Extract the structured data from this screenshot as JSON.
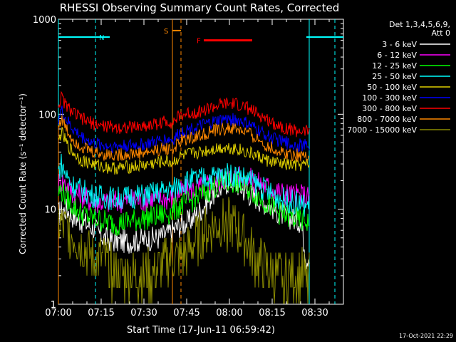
{
  "chart_data": {
    "type": "line",
    "title": "RHESSI Observing Summary Count Rates, Corrected",
    "xlabel": "Start Time (17-Jun-11 06:59:42)",
    "ylabel": "Corrected Count Rate (s⁻¹ detector⁻¹)",
    "yscale": "log",
    "ylim": [
      1,
      1000
    ],
    "xlim_minutes": [
      0,
      100
    ],
    "x_tick_labels": [
      "07:00",
      "07:15",
      "07:30",
      "07:45",
      "08:00",
      "08:15",
      "08:30"
    ],
    "x_tick_minutes": [
      0,
      15,
      30,
      45,
      60,
      75,
      90
    ],
    "y_tick_labels": [
      "1",
      "10",
      "100",
      "1000"
    ],
    "y_tick_values": [
      1,
      10,
      100,
      1000
    ],
    "legend_placement": "top-right outside",
    "legend_header": [
      "Det 1,3,4,5,6,9,",
      "Att 0"
    ],
    "series": [
      {
        "name": "3 - 6 keV",
        "color": "#ffffff",
        "x": [
          0,
          1,
          3,
          5,
          8,
          12,
          16,
          20,
          25,
          30,
          35,
          38,
          40,
          43,
          46,
          50,
          54,
          58,
          60,
          63,
          66,
          70,
          74,
          78,
          82,
          85,
          87,
          88
        ],
        "values": [
          9,
          9.5,
          10,
          8.5,
          7.5,
          6.5,
          5,
          4.6,
          4.6,
          4.8,
          5,
          5.5,
          6,
          6.8,
          7.5,
          10,
          14,
          18,
          20,
          18,
          15,
          13,
          11,
          9,
          8,
          7.5,
          3,
          3.5
        ]
      },
      {
        "name": "6 - 12 keV",
        "color": "#ff00ff",
        "x": [
          0,
          1,
          3,
          5,
          8,
          12,
          16,
          20,
          25,
          30,
          35,
          38,
          40,
          43,
          46,
          50,
          54,
          58,
          62,
          66,
          70,
          74,
          78,
          82,
          86,
          88
        ],
        "values": [
          19,
          20,
          18,
          15,
          14,
          12,
          12,
          12,
          12.5,
          12.5,
          13,
          13,
          13,
          15,
          16,
          17,
          19,
          21,
          22,
          21,
          19,
          17,
          15,
          14,
          14,
          13
        ]
      },
      {
        "name": "12 - 25 keV",
        "color": "#00ff00",
        "x": [
          0,
          1,
          3,
          5,
          8,
          12,
          16,
          20,
          25,
          30,
          35,
          38,
          40,
          43,
          46,
          50,
          54,
          58,
          62,
          66,
          70,
          74,
          78,
          82,
          86,
          88
        ],
        "values": [
          15,
          16,
          13,
          11,
          9,
          8,
          7.5,
          7,
          7.5,
          8,
          8.5,
          9,
          9.5,
          11,
          12,
          14,
          17,
          19,
          19.5,
          17,
          14,
          11,
          9,
          8,
          7.5,
          7.5
        ]
      },
      {
        "name": "25 - 50 keV",
        "color": "#00ffff",
        "x": [
          0,
          1,
          3,
          5,
          8,
          12,
          16,
          20,
          25,
          30,
          35,
          38,
          40,
          43,
          46,
          50,
          54,
          58,
          62,
          66,
          70,
          74,
          78,
          82,
          86,
          88
        ],
        "values": [
          25,
          30,
          22,
          18,
          16,
          14,
          13.5,
          13,
          13.5,
          14,
          15,
          16,
          16,
          19,
          20,
          21,
          22,
          23,
          23,
          21,
          18,
          15,
          13,
          12,
          11,
          11
        ]
      },
      {
        "name": "50 - 100 keV",
        "color": "#e0d000",
        "x": [
          0,
          1,
          3,
          5,
          8,
          12,
          16,
          20,
          25,
          30,
          35,
          38,
          40,
          43,
          46,
          50,
          54,
          58,
          62,
          66,
          70,
          74,
          78,
          82,
          86,
          88
        ],
        "values": [
          50,
          65,
          48,
          40,
          33,
          30,
          28,
          27,
          28,
          29,
          31,
          32,
          31,
          36,
          38,
          40,
          43,
          45,
          44,
          40,
          36,
          32,
          30,
          29,
          29,
          29
        ]
      },
      {
        "name": "100 - 300 keV",
        "color": "#0000ff",
        "x": [
          0,
          1,
          3,
          5,
          8,
          12,
          16,
          20,
          25,
          30,
          35,
          38,
          40,
          43,
          46,
          50,
          54,
          58,
          62,
          66,
          70,
          74,
          78,
          82,
          86,
          88
        ],
        "values": [
          90,
          110,
          85,
          70,
          58,
          50,
          47,
          46,
          47,
          48,
          52,
          55,
          53,
          65,
          70,
          75,
          82,
          88,
          88,
          80,
          68,
          58,
          52,
          48,
          47,
          47
        ]
      },
      {
        "name": "300 - 800 keV",
        "color": "#ff0000",
        "x": [
          0,
          1,
          3,
          5,
          8,
          12,
          16,
          20,
          25,
          30,
          35,
          38,
          40,
          43,
          46,
          50,
          54,
          58,
          62,
          66,
          70,
          74,
          78,
          82,
          86,
          88
        ],
        "values": [
          125,
          150,
          120,
          105,
          90,
          80,
          75,
          73,
          73,
          75,
          80,
          85,
          82,
          98,
          102,
          108,
          118,
          128,
          128,
          118,
          100,
          85,
          75,
          68,
          66,
          66
        ]
      },
      {
        "name": "800 - 7000 keV",
        "color": "#ff8800",
        "x": [
          0,
          1,
          3,
          5,
          8,
          12,
          16,
          20,
          25,
          30,
          35,
          38,
          40,
          43,
          46,
          50,
          54,
          58,
          62,
          66,
          70,
          74,
          78,
          82,
          86,
          88
        ],
        "values": [
          75,
          90,
          68,
          55,
          46,
          40,
          38,
          37,
          38,
          39,
          42,
          44,
          42,
          52,
          56,
          60,
          66,
          70,
          70,
          64,
          54,
          45,
          40,
          38,
          37,
          37
        ]
      },
      {
        "name": "7000 - 15000 keV",
        "color": "#8b8b00",
        "x": [
          0,
          3,
          6,
          9,
          12,
          15,
          18,
          21,
          24,
          27,
          30,
          33,
          36,
          39,
          42,
          45,
          48,
          51,
          54,
          57,
          60,
          63,
          66,
          69,
          72,
          75,
          78,
          81,
          84,
          88
        ],
        "values": [
          7,
          6,
          5,
          4,
          3,
          3,
          2.5,
          2,
          2,
          2,
          2,
          2,
          2.5,
          3,
          3,
          3.5,
          4.5,
          5.5,
          6.5,
          7,
          7,
          6,
          4.5,
          3,
          2.5,
          2,
          2,
          2,
          2,
          2
        ]
      }
    ],
    "markers": [
      {
        "label": "N",
        "color": "#00ffff",
        "line_minutes": [
          0,
          18
        ],
        "dashed_minutes": [
          13
        ],
        "solid_minutes": [],
        "y_level": 650
      },
      {
        "label": "N",
        "color": "#00ffff",
        "line_minutes": [
          87,
          100
        ],
        "dashed_minutes": [
          97
        ],
        "solid_minutes": [],
        "y_level": 650
      },
      {
        "label": "S",
        "color": "#ff8800",
        "line_minutes": [
          40,
          43
        ],
        "dashed_minutes": [
          43
        ],
        "solid_minutes": [
          40
        ],
        "y_level": 760
      },
      {
        "label": "F",
        "color": "#ff0000",
        "line_minutes": [
          51,
          68
        ],
        "dashed_minutes": [],
        "solid_minutes": [],
        "y_level": 600
      }
    ]
  },
  "footer": {
    "timestamp": "17-Oct-2021 22:29"
  }
}
